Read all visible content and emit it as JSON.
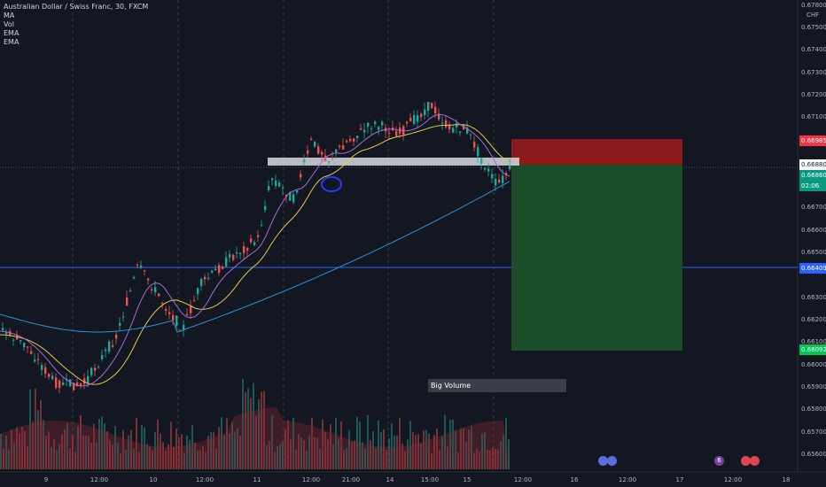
{
  "header": {
    "symbol_line": "Australian Dollar / Swiss Franc, 30, FXCM",
    "indicators": [
      "MA",
      "Vol",
      "EMA",
      "EMA"
    ]
  },
  "price_axis": {
    "currency": "CHF",
    "ticks": [
      "0.67800",
      "0.67500",
      "0.67400",
      "0.67300",
      "0.67200",
      "0.67100",
      "0.66900",
      "0.66700",
      "0.66600",
      "0.66500",
      "0.66300",
      "0.66200",
      "0.66100",
      "0.66000",
      "0.65900",
      "0.65800",
      "0.65700",
      "0.65600"
    ],
    "labels": {
      "stop": {
        "text": "0.66985",
        "color": "#f23645"
      },
      "current": {
        "text": "0.66880",
        "color": "#131722"
      },
      "last": {
        "text": "0.66860",
        "color": "#089981"
      },
      "countdown": {
        "text": "02:06",
        "color": "#089981"
      },
      "support": {
        "text": "0.66409",
        "color": "#2962ff"
      },
      "target": {
        "text": "0.66092",
        "color": "#00c853"
      }
    }
  },
  "time_axis": {
    "ticks": [
      "9",
      "12:00",
      "10",
      "12:00",
      "11",
      "12:00",
      "21:00",
      "14",
      "15:00",
      "15",
      "12:00",
      "16",
      "12:00",
      "17",
      "12:00",
      "18"
    ]
  },
  "annotations": {
    "big_volume": "Big Volume"
  },
  "events": [
    {
      "icon": "flag-icon",
      "label": "",
      "color": "#5b6ee1"
    },
    {
      "icon": "flag-icon",
      "label": "",
      "color": "#5b6ee1"
    },
    {
      "icon": "flag-icon",
      "label": "6",
      "color": "#7b3fa0"
    },
    {
      "icon": "flag-icon",
      "label": "",
      "color": "#e0454f"
    },
    {
      "icon": "flag-icon",
      "label": "",
      "color": "#e0454f"
    }
  ],
  "colors": {
    "up": "#26a69a",
    "down": "#ef5350",
    "ema_short": "#e6c84a",
    "ema_mid": "#a56ad6",
    "ma_long": "#2f8fd8",
    "risk_zone": "#8b1a1a",
    "reward_zone": "#1b4d2a"
  }
}
